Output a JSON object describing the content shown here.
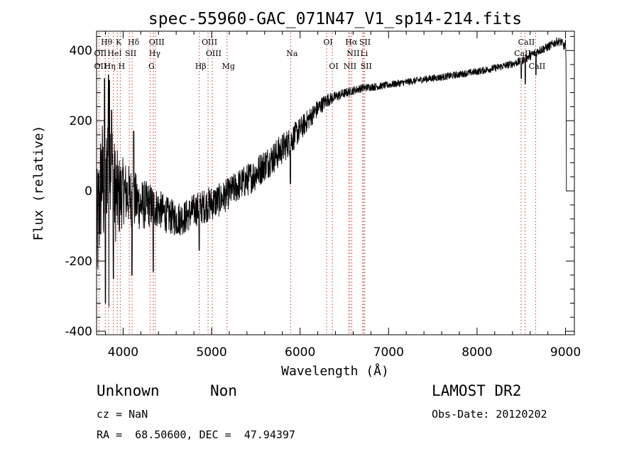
{
  "chart_data": {
    "type": "line",
    "title": "spec-55960-GAC_071N47_V1_sp14-214.fits",
    "xlabel": "Wavelength (Å)",
    "ylabel": "Flux (relative)",
    "xlim": [
      3700,
      9100
    ],
    "ylim": [
      -410,
      455
    ],
    "x_ticks": [
      4000,
      5000,
      6000,
      7000,
      8000,
      9000
    ],
    "y_ticks": [
      -400,
      -200,
      0,
      200,
      400
    ],
    "grid": false,
    "series": [
      {
        "envelope": [
          [
            3700,
            -150
          ],
          [
            3760,
            50
          ],
          [
            3800,
            -50
          ],
          [
            3830,
            150
          ],
          [
            3860,
            100
          ],
          [
            3900,
            0
          ],
          [
            3950,
            -20
          ],
          [
            4000,
            0
          ],
          [
            4100,
            -20
          ],
          [
            4200,
            -40
          ],
          [
            4300,
            -40
          ],
          [
            4400,
            -50
          ],
          [
            4500,
            -70
          ],
          [
            4600,
            -80
          ],
          [
            4700,
            -75
          ],
          [
            4800,
            -55
          ],
          [
            4900,
            -45
          ],
          [
            5000,
            -35
          ],
          [
            5100,
            -25
          ],
          [
            5200,
            -5
          ],
          [
            5300,
            15
          ],
          [
            5400,
            30
          ],
          [
            5500,
            50
          ],
          [
            5600,
            75
          ],
          [
            5700,
            95
          ],
          [
            5800,
            120
          ],
          [
            5900,
            145
          ],
          [
            6000,
            175
          ],
          [
            6100,
            205
          ],
          [
            6200,
            235
          ],
          [
            6300,
            258
          ],
          [
            6400,
            268
          ],
          [
            6500,
            278
          ],
          [
            6600,
            286
          ],
          [
            6700,
            293
          ],
          [
            6800,
            296
          ],
          [
            6900,
            298
          ],
          [
            7000,
            302
          ],
          [
            7200,
            310
          ],
          [
            7400,
            318
          ],
          [
            7600,
            324
          ],
          [
            7800,
            332
          ],
          [
            8000,
            340
          ],
          [
            8200,
            350
          ],
          [
            8400,
            362
          ],
          [
            8500,
            370
          ],
          [
            8600,
            385
          ],
          [
            8700,
            400
          ],
          [
            8800,
            410
          ],
          [
            8900,
            425
          ],
          [
            8950,
            425
          ],
          [
            8990,
            410
          ]
        ],
        "noise": [
          [
            3700,
            190
          ],
          [
            3800,
            170
          ],
          [
            3900,
            150
          ],
          [
            4000,
            95
          ],
          [
            4200,
            75
          ],
          [
            4400,
            55
          ],
          [
            4600,
            50
          ],
          [
            4800,
            48
          ],
          [
            5000,
            50
          ],
          [
            5200,
            45
          ],
          [
            5500,
            48
          ],
          [
            5800,
            45
          ],
          [
            6000,
            35
          ],
          [
            6200,
            25
          ],
          [
            6400,
            15
          ],
          [
            6600,
            12
          ],
          [
            7000,
            10
          ],
          [
            8000,
            10
          ],
          [
            8400,
            11
          ],
          [
            8600,
            13
          ],
          [
            8900,
            12
          ],
          [
            8990,
            12
          ]
        ],
        "dips": [
          [
            3800,
            -320
          ],
          [
            3840,
            -330
          ],
          [
            3890,
            -250
          ],
          [
            4100,
            -240
          ],
          [
            4340,
            -230
          ],
          [
            4860,
            -170
          ],
          [
            5890,
            20
          ],
          [
            8500,
            320
          ],
          [
            8545,
            305
          ],
          [
            8665,
            330
          ]
        ],
        "spikes": [
          [
            3790,
            320
          ],
          [
            3835,
            330
          ],
          [
            3845,
            315
          ],
          [
            3870,
            230
          ],
          [
            4120,
            170
          ]
        ],
        "tail": [
          [
            9000,
            430
          ],
          [
            9005,
            370
          ],
          [
            9010,
            0
          ]
        ]
      }
    ],
    "lines": [
      {
        "label": "Hθ",
        "wl": 3798,
        "row": 0
      },
      {
        "label": "K",
        "wl": 3934,
        "row": 0
      },
      {
        "label": "Hδ",
        "wl": 4102,
        "row": 0
      },
      {
        "label": "OIII",
        "wl": 4364,
        "row": 0
      },
      {
        "label": "OIII",
        "wl": 4960,
        "row": 0
      },
      {
        "label": "OI",
        "wl": 6300,
        "row": 0
      },
      {
        "label": "Hα",
        "wl": 6563,
        "row": 0
      },
      {
        "label": "SII",
        "wl": 6717,
        "row": 0
      },
      {
        "label": "CaII",
        "wl": 8542,
        "row": 0
      },
      {
        "label": "OII",
        "wl": 3727,
        "row": 1
      },
      {
        "label": "HeI",
        "wl": 3889,
        "row": 1
      },
      {
        "label": "SII",
        "wl": 4070,
        "row": 1
      },
      {
        "label": "Hγ",
        "wl": 4341,
        "row": 1
      },
      {
        "label": "OIII",
        "wl": 5007,
        "row": 1
      },
      {
        "label": "Na",
        "wl": 5893,
        "row": 1
      },
      {
        "label": "NII",
        "wl": 6584,
        "row": 1
      },
      {
        "label": "Li",
        "wl": 6708,
        "row": 1
      },
      {
        "label": "CaII",
        "wl": 8498,
        "row": 1
      },
      {
        "label": "OII",
        "wl": 3727,
        "row": 2
      },
      {
        "label": "Hη",
        "wl": 3835,
        "row": 2
      },
      {
        "label": "H",
        "wl": 3968,
        "row": 2
      },
      {
        "label": "G",
        "wl": 4305,
        "row": 2
      },
      {
        "label": "Hβ",
        "wl": 4861,
        "row": 2
      },
      {
        "label": "Mg",
        "wl": 5175,
        "row": 2
      },
      {
        "label": "OI",
        "wl": 6364,
        "row": 2
      },
      {
        "label": "NII",
        "wl": 6548,
        "row": 2
      },
      {
        "label": "SII",
        "wl": 6731,
        "row": 2
      },
      {
        "label": "CaII",
        "wl": 8662,
        "row": 2
      }
    ]
  },
  "info": {
    "class": "Unknown",
    "subclass": "Non",
    "survey": "LAMOST DR2",
    "cz": "cz = NaN",
    "obs_date": "Obs-Date: 20120202",
    "coords": "RA =  68.50600, DEC =  47.94397"
  }
}
